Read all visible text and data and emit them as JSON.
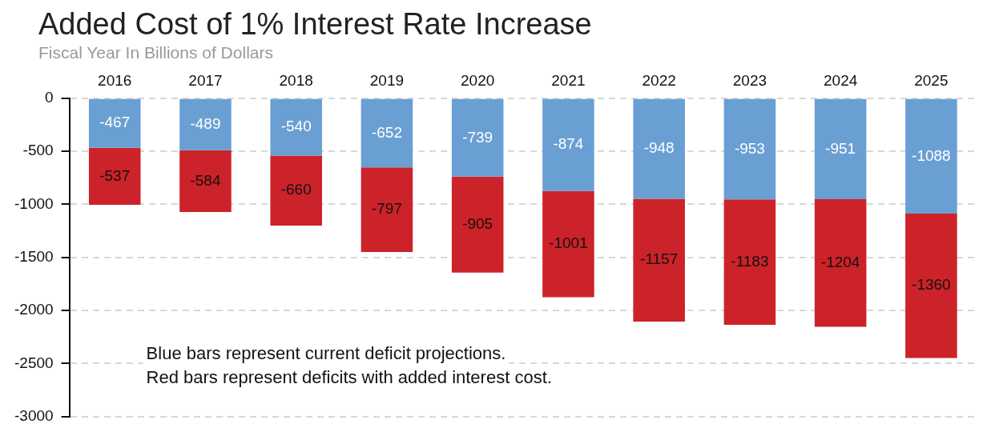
{
  "chart_data": {
    "type": "bar",
    "title": "Added Cost of 1% Interest Rate Increase",
    "subtitle": "Fiscal Year In Billions of Dollars",
    "categories": [
      "2016",
      "2017",
      "2018",
      "2019",
      "2020",
      "2021",
      "2022",
      "2023",
      "2024",
      "2025"
    ],
    "stacked": true,
    "series": [
      {
        "color": "#6a9fd4",
        "values": [
          -467,
          -489,
          -540,
          -652,
          -739,
          -874,
          -948,
          -953,
          -951,
          -1088
        ]
      },
      {
        "color": "#cc2229",
        "values": [
          -537,
          -584,
          -660,
          -797,
          -905,
          -1001,
          -1157,
          -1183,
          -1204,
          -1360
        ]
      }
    ],
    "ylim": [
      -3000,
      0
    ],
    "yticks": [
      0,
      -500,
      -1000,
      -1500,
      -2000,
      -2500,
      -3000
    ],
    "grid": "y",
    "legend": false,
    "data_labels": true,
    "annotations": [
      "Blue bars represent current deficit projections.",
      "Red bars represent deficits with added interest cost."
    ]
  }
}
